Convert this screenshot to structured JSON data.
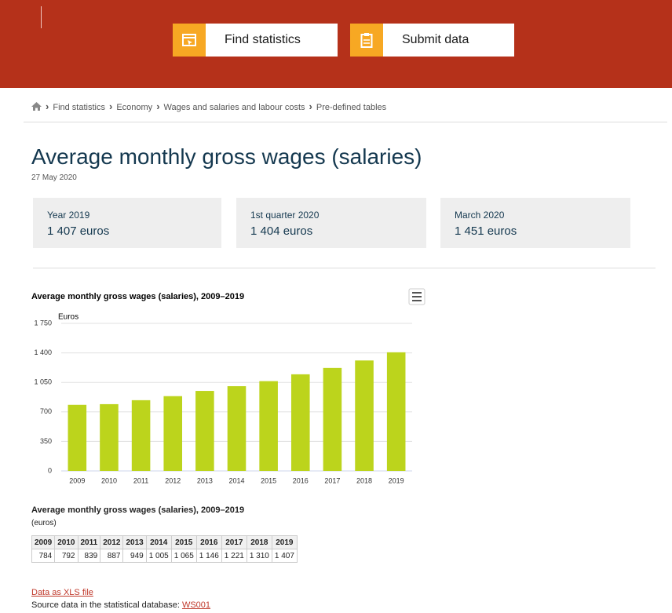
{
  "header": {
    "buttons": [
      "Find statistics",
      "Submit data"
    ]
  },
  "breadcrumb": [
    "Find statistics",
    "Economy",
    "Wages and salaries and labour costs",
    "Pre-defined tables"
  ],
  "page": {
    "title": "Average monthly gross wages (salaries)",
    "date": "27 May 2020"
  },
  "highlights": [
    {
      "label": "Year 2019",
      "value": "1 407 euros"
    },
    {
      "label": "1st quarter 2020",
      "value": "1 404 euros"
    },
    {
      "label": "March 2020",
      "value": "1 451 euros"
    }
  ],
  "chart_data": {
    "type": "bar",
    "title": "Average monthly gross wages (salaries), 2009–2019",
    "y_label": "Euros",
    "categories": [
      "2009",
      "2010",
      "2011",
      "2012",
      "2013",
      "2014",
      "2015",
      "2016",
      "2017",
      "2018",
      "2019"
    ],
    "values": [
      784,
      792,
      839,
      887,
      949,
      1005,
      1065,
      1146,
      1221,
      1310,
      1407
    ],
    "color": "#bcd41c",
    "ylim": [
      0,
      1750
    ],
    "yticks": [
      0,
      350,
      700,
      {
        "value": 1050,
        "label": "1 050"
      },
      {
        "value": 1400,
        "label": "1 400"
      },
      {
        "value": 1750,
        "label": "1 750"
      }
    ],
    "grid": true
  },
  "table": {
    "title": "Average monthly gross wages (salaries), 2009–2019",
    "unit": "(euros)",
    "rows": [
      [
        "2009",
        "2010",
        "2011",
        "2012",
        "2013",
        "2014",
        "2015",
        "2016",
        "2017",
        "2018",
        "2019"
      ],
      [
        "784",
        "792",
        "839",
        "887",
        "949",
        "1 005",
        "1 065",
        "1 146",
        "1 221",
        "1 310",
        "1 407"
      ]
    ]
  },
  "links": {
    "xls": "Data as XLS file",
    "source_text": "Source data in the statistical database:",
    "source_link": "WS001"
  }
}
